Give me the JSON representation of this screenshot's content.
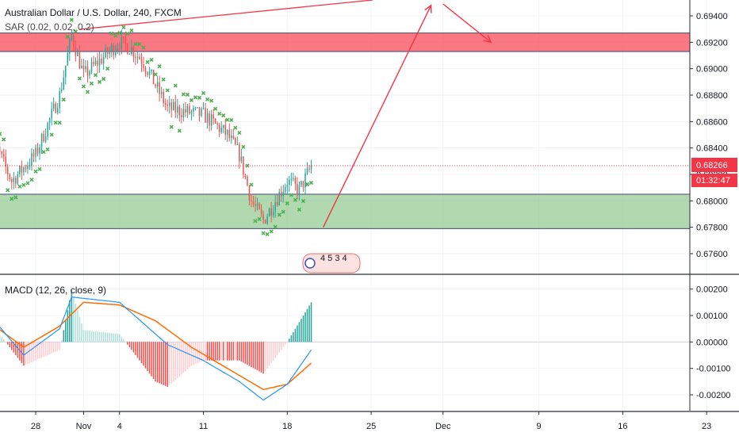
{
  "header": {
    "title": "Australian Dollar / U.S. Dollar, 240, FXCM",
    "sar_label": "SAR (0.02, 0.02, 0.2)",
    "macd_label": "MACD (12, 26, close, 9)"
  },
  "price_tag": {
    "value": "0.68266",
    "countdown": "01:32:47",
    "color": "#f23645"
  },
  "events_badge_text": "4 5 3 4",
  "colors": {
    "up": "#26a69a",
    "down": "#ef5350",
    "sar": "#4caf50",
    "resistance_fill": "#f7525f",
    "support_fill": "#8fc98f",
    "drawing": "#f23645",
    "macd_line": "#2196f3",
    "signal_line": "#ff6d00",
    "hist_up_strong": "#26a69a",
    "hist_up_weak": "#b2dfdb",
    "hist_down_strong": "#ef5350",
    "hist_down_weak": "#ffcdd2"
  },
  "chart_data": [
    {
      "type": "candlestick",
      "title": "Australian Dollar / U.S. Dollar, 240, FXCM",
      "y_axis_ticks": [
        "0.69400",
        "0.69200",
        "0.69000",
        "0.68800",
        "0.68600",
        "0.68400",
        "0.68200",
        "0.68000",
        "0.67800",
        "0.67600"
      ],
      "ylim": [
        0.6745,
        0.6952
      ],
      "x_axis_labels": [
        "28",
        "Nov",
        "4",
        "11",
        "18",
        "25",
        "Dec",
        "9",
        "16",
        "23"
      ],
      "zones": [
        {
          "name": "resistance",
          "from": 0.6913,
          "to": 0.6927
        },
        {
          "name": "support",
          "from": 0.6779,
          "to": 0.6805
        }
      ],
      "current_price": 0.68266,
      "projection": [
        {
          "from": [
            "Nov 21",
            0.678
          ],
          "to": [
            "Nov 30",
            0.6948
          ]
        },
        {
          "from": [
            "Dec 1",
            0.6949
          ],
          "to": [
            "Dec 5",
            0.692
          ]
        }
      ],
      "ohlc_anchors": [
        [
          "Oct 24",
          0.6855
        ],
        [
          "Oct 26",
          0.6815
        ],
        [
          "Oct 28",
          0.6835
        ],
        [
          "Oct 30",
          0.688
        ],
        [
          "Oct 31",
          0.6925
        ],
        [
          "Nov 1",
          0.6895
        ],
        [
          "Nov 4",
          0.692
        ],
        [
          "Nov 5",
          0.6915
        ],
        [
          "Nov 6",
          0.6905
        ],
        [
          "Nov 8",
          0.687
        ],
        [
          "Nov 11",
          0.6865
        ],
        [
          "Nov 13",
          0.685
        ],
        [
          "Nov 14",
          0.6835
        ],
        [
          "Nov 15",
          0.68
        ],
        [
          "Nov 16",
          0.6785
        ],
        [
          "Nov 17",
          0.68
        ],
        [
          "Nov 18",
          0.6815
        ],
        [
          "Nov 19",
          0.6808
        ],
        [
          "Nov 20",
          0.6826
        ]
      ]
    },
    {
      "type": "macd",
      "title": "MACD (12, 26, close, 9)",
      "y_axis_ticks": [
        "0.00200",
        "0.00100",
        "0.00000",
        "-0.00100",
        "-0.00200"
      ],
      "ylim": [
        -0.0026,
        0.0025
      ],
      "macd_anchors": [
        [
          "Oct 24",
          0.0011
        ],
        [
          "Oct 27",
          -0.0005
        ],
        [
          "Oct 30",
          0.0005
        ],
        [
          "Oct 31",
          0.0017
        ],
        [
          "Nov 4",
          0.0015
        ],
        [
          "Nov 6",
          0.0007
        ],
        [
          "Nov 8",
          -0.0001
        ],
        [
          "Nov 11",
          -0.0007
        ],
        [
          "Nov 14",
          -0.0015
        ],
        [
          "Nov 16",
          -0.0022
        ],
        [
          "Nov 18",
          -0.0016
        ],
        [
          "Nov 20",
          -0.0003
        ]
      ],
      "signal_anchors": [
        [
          "Oct 24",
          0.0008
        ],
        [
          "Oct 27",
          -0.0002
        ],
        [
          "Oct 30",
          0.0006
        ],
        [
          "Nov 1",
          0.0015
        ],
        [
          "Nov 4",
          0.0014
        ],
        [
          "Nov 7",
          0.0008
        ],
        [
          "Nov 10",
          -0.0002
        ],
        [
          "Nov 13",
          -0.001
        ],
        [
          "Nov 16",
          -0.0018
        ],
        [
          "Nov 18",
          -0.0016
        ],
        [
          "Nov 20",
          -0.0008
        ]
      ]
    }
  ]
}
